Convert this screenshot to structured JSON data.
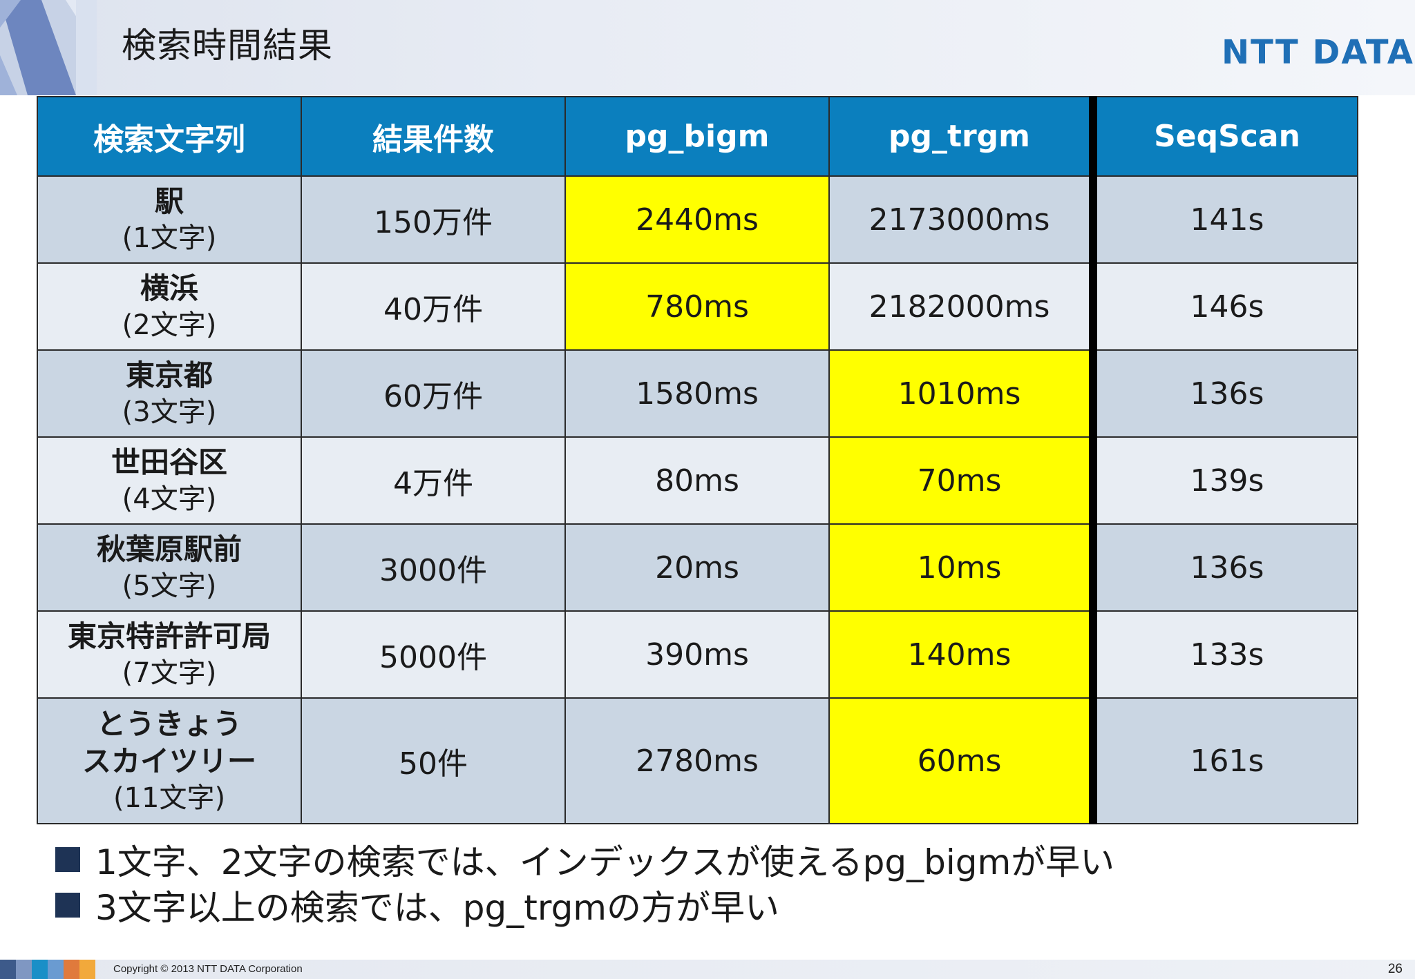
{
  "header": {
    "title": "検索時間結果",
    "logo": "NTT DATA"
  },
  "table": {
    "columns": [
      "検索文字列",
      "結果件数",
      "pg_bigm",
      "pg_trgm",
      "SeqScan"
    ],
    "rows": [
      {
        "kw": [
          "駅"
        ],
        "chars": "(1文字)",
        "count": "150万件",
        "bigm": "2440ms",
        "trgm": "2173000ms",
        "seq": "141s",
        "fastest": "bigm"
      },
      {
        "kw": [
          "横浜"
        ],
        "chars": "(2文字)",
        "count": "40万件",
        "bigm": "780ms",
        "trgm": "2182000ms",
        "seq": "146s",
        "fastest": "bigm"
      },
      {
        "kw": [
          "東京都"
        ],
        "chars": "(3文字)",
        "count": "60万件",
        "bigm": "1580ms",
        "trgm": "1010ms",
        "seq": "136s",
        "fastest": "trgm"
      },
      {
        "kw": [
          "世田谷区"
        ],
        "chars": "(4文字)",
        "count": "4万件",
        "bigm": "80ms",
        "trgm": "70ms",
        "seq": "139s",
        "fastest": "trgm"
      },
      {
        "kw": [
          "秋葉原駅前"
        ],
        "chars": "(5文字)",
        "count": "3000件",
        "bigm": "20ms",
        "trgm": "10ms",
        "seq": "136s",
        "fastest": "trgm"
      },
      {
        "kw": [
          "東京特許許可局"
        ],
        "chars": "(7文字)",
        "count": "5000件",
        "bigm": "390ms",
        "trgm": "140ms",
        "seq": "133s",
        "fastest": "trgm"
      },
      {
        "kw": [
          "とうきょう",
          "スカイツリー"
        ],
        "chars": "(11文字)",
        "count": "50件",
        "bigm": "2780ms",
        "trgm": "60ms",
        "seq": "161s",
        "fastest": "trgm"
      }
    ]
  },
  "bullets": [
    "1文字、2文字の検索では、インデックスが使えるpg_bigmが早い",
    "3文字以上の検索では、pg_trgmの方が早い"
  ],
  "footer": {
    "copyright": "Copyright © 2013 NTT DATA Corporation",
    "page": "26"
  },
  "colors": {
    "header_blue": "#0b7fbe",
    "highlight": "#ffff00",
    "row_odd": "#cad6e3",
    "row_even": "#e8edf3",
    "bullet_square": "#1e3355",
    "logo": "#1f6fb6"
  }
}
